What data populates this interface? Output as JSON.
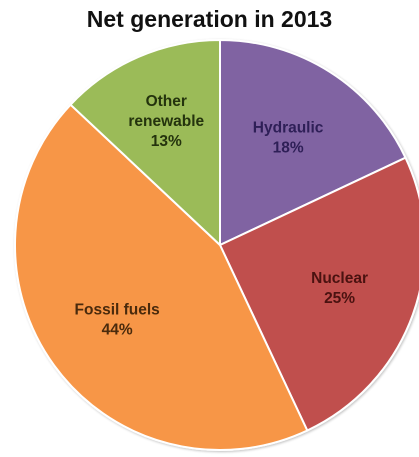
{
  "chart_data": {
    "type": "pie",
    "title": "Net generation in 2013",
    "slices": [
      {
        "name": "Hydraulic",
        "value": 18,
        "percent_label": "18%",
        "color": "#8064a2",
        "label_color": "#2e1f57"
      },
      {
        "name": "Nuclear",
        "value": 25,
        "percent_label": "25%",
        "color": "#c0504d",
        "label_color": "#4a1210"
      },
      {
        "name": "Fossil fuels",
        "value": 44,
        "percent_label": "44%",
        "color": "#f79646",
        "label_color": "#4a2a0c"
      },
      {
        "name": "Other renewable",
        "value": 13,
        "percent_label": "13%",
        "color": "#9bbb59",
        "label_color": "#24330d"
      }
    ],
    "start_angle_deg": 0,
    "direction": "clockwise",
    "legend": "none",
    "slice_borders": "#ffffff"
  }
}
